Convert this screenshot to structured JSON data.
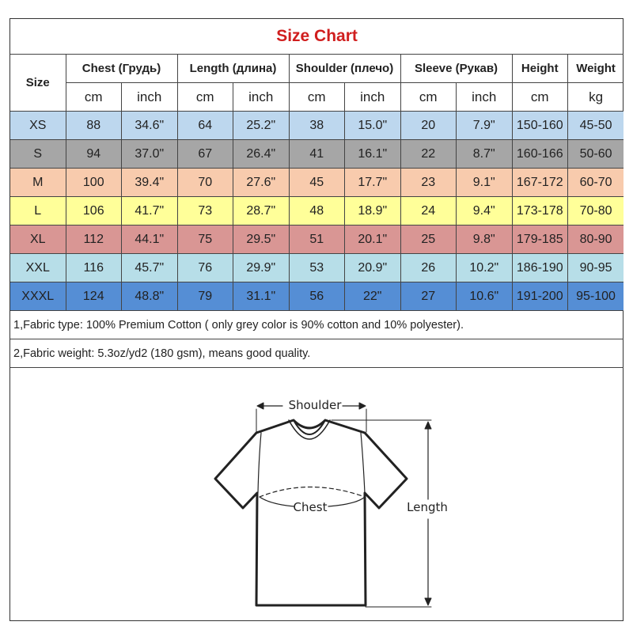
{
  "title": "Size Chart",
  "headers": {
    "size": "Size",
    "groups": [
      "Chest  (Грудь)",
      "Length (длина)",
      "Shoulder (плечо)",
      "Sleeve (Рукав)",
      "Height",
      "Weight"
    ],
    "units": [
      "cm",
      "inch",
      "cm",
      "inch",
      "cm",
      "inch",
      "cm",
      "inch",
      "cm",
      "kg"
    ]
  },
  "rows": [
    {
      "size": "XS",
      "color": "#bdd7ee",
      "values": [
        "88",
        "34.6\"",
        "64",
        "25.2\"",
        "38",
        "15.0\"",
        "20",
        "7.9\"",
        "150-160",
        "45-50"
      ]
    },
    {
      "size": "S",
      "color": "#a6a6a6",
      "values": [
        "94",
        "37.0\"",
        "67",
        "26.4\"",
        "41",
        "16.1\"",
        "22",
        "8.7\"",
        "160-166",
        "50-60"
      ]
    },
    {
      "size": "M",
      "color": "#f8cbad",
      "values": [
        "100",
        "39.4\"",
        "70",
        "27.6\"",
        "45",
        "17.7\"",
        "23",
        "9.1\"",
        "167-172",
        "60-70"
      ]
    },
    {
      "size": "L",
      "color": "#ffff99",
      "values": [
        "106",
        "41.7\"",
        "73",
        "28.7\"",
        "48",
        "18.9\"",
        "24",
        "9.4\"",
        "173-178",
        "70-80"
      ]
    },
    {
      "size": "XL",
      "color": "#d99694",
      "values": [
        "112",
        "44.1\"",
        "75",
        "29.5\"",
        "51",
        "20.1\"",
        "25",
        "9.8\"",
        "179-185",
        "80-90"
      ]
    },
    {
      "size": "XXL",
      "color": "#b7dee8",
      "values": [
        "116",
        "45.7\"",
        "76",
        "29.9\"",
        "53",
        "20.9\"",
        "26",
        "10.2\"",
        "186-190",
        "90-95"
      ]
    },
    {
      "size": "XXXL",
      "color": "#558ed5",
      "values": [
        "124",
        "48.8\"",
        "79",
        "31.1\"",
        "56",
        "22\"",
        "27",
        "10.6\"",
        "191-200",
        "95-100"
      ]
    }
  ],
  "notes": [
    "1,Fabric type: 100% Premium Cotton ( only grey color is 90% cotton and 10% polyester).",
    "2,Fabric weight: 5.3oz/yd2 (180 gsm), means good quality."
  ],
  "diagram": {
    "shoulder": "Shoulder",
    "chest": "Chest",
    "length": "Length"
  },
  "title_color": "#d01e1e"
}
